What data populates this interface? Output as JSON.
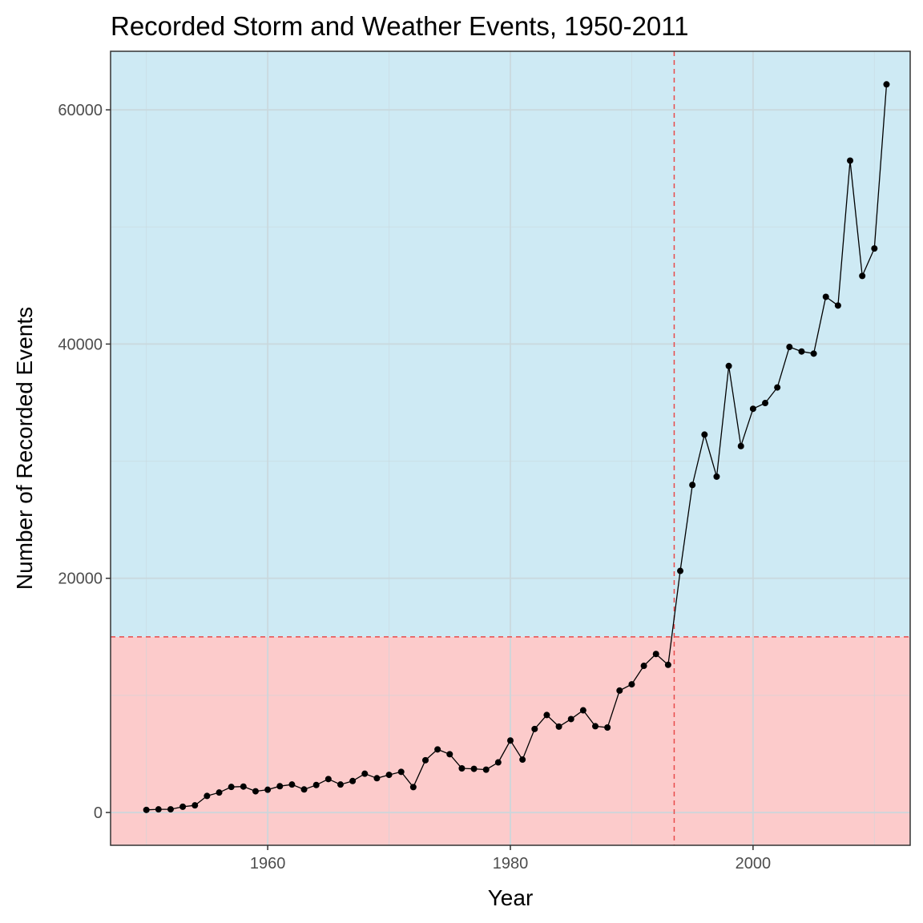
{
  "chart_data": {
    "type": "line",
    "title": "Recorded Storm and Weather Events, 1950-2011",
    "xlabel": "Year",
    "ylabel": "Number of Recorded Events",
    "xlim": [
      1947.05,
      2012.95
    ],
    "ylim": [
      -2800,
      65000
    ],
    "x_ticks": [
      1960,
      1980,
      2000
    ],
    "x_tick_labels": [
      "1960",
      "1980",
      "2000"
    ],
    "x_minor_ticks": [
      1950,
      1970,
      1990,
      2010
    ],
    "y_ticks": [
      0,
      20000,
      40000,
      60000
    ],
    "y_tick_labels": [
      "0",
      "20000",
      "40000",
      "60000"
    ],
    "y_minor_ticks": [
      10000,
      30000,
      50000
    ],
    "grid": true,
    "threshold_year": 1993.5,
    "threshold_events": 15000,
    "colors": {
      "region_below": "#fccbcb",
      "region_above": "#ceeaf4",
      "threshold_line": "#e84a4a",
      "series": "#000000",
      "grid": "#c9d7dc",
      "panel_border": "#333333"
    },
    "series": [
      {
        "name": "",
        "x": [
          1950,
          1951,
          1952,
          1953,
          1954,
          1955,
          1956,
          1957,
          1958,
          1959,
          1960,
          1961,
          1962,
          1963,
          1964,
          1965,
          1966,
          1967,
          1968,
          1969,
          1970,
          1971,
          1972,
          1973,
          1974,
          1975,
          1976,
          1977,
          1978,
          1979,
          1980,
          1981,
          1982,
          1983,
          1984,
          1985,
          1986,
          1987,
          1988,
          1989,
          1990,
          1991,
          1992,
          1993,
          1994,
          1995,
          1996,
          1997,
          1998,
          1999,
          2000,
          2001,
          2002,
          2003,
          2004,
          2005,
          2006,
          2007,
          2008,
          2009,
          2010,
          2011
        ],
        "values": [
          223,
          269,
          272,
          492,
          609,
          1413,
          1703,
          2184,
          2213,
          1813,
          1945,
          2246,
          2389,
          1968,
          2348,
          2855,
          2388,
          2688,
          3312,
          2926,
          3215,
          3471,
          2168,
          4463,
          5386,
          4975,
          3768,
          3728,
          3657,
          4279,
          6146,
          4517,
          7132,
          8322,
          7335,
          7979,
          8726,
          7367,
          7257,
          10410,
          10946,
          12522,
          13534,
          12607,
          20631,
          27970,
          32270,
          28680,
          38128,
          31289,
          34471,
          34962,
          36293,
          39752,
          39363,
          39184,
          44034,
          43289,
          55663,
          45817,
          48161,
          62174
        ]
      }
    ]
  }
}
